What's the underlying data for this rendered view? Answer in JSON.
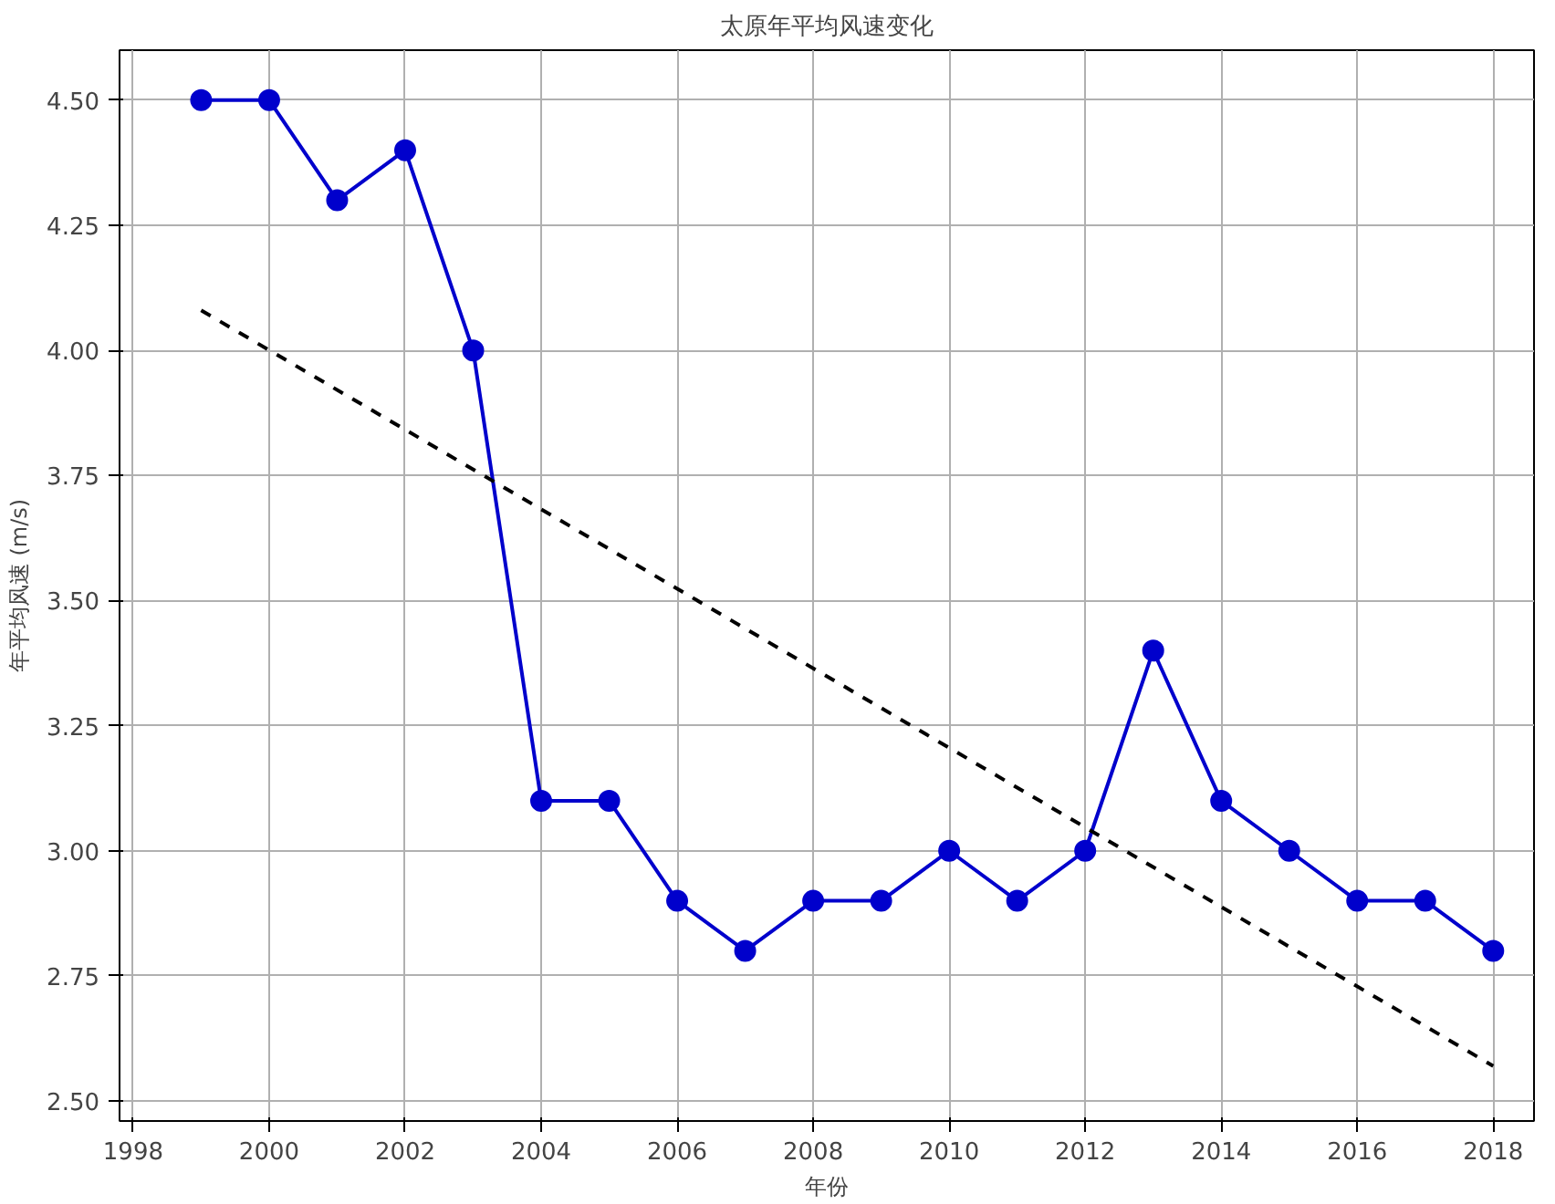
{
  "chart_data": {
    "type": "line",
    "title": "太原年平均风速变化",
    "xlabel": "年份",
    "ylabel": "年平均风速 (m/s)",
    "xlim": [
      1997.8,
      2018.6
    ],
    "ylim": [
      2.46,
      4.6
    ],
    "xticks": [
      1998,
      2000,
      2002,
      2004,
      2006,
      2008,
      2010,
      2012,
      2014,
      2016,
      2018
    ],
    "yticks": [
      {
        "value": 2.5,
        "label": "2.50"
      },
      {
        "value": 2.75,
        "label": "2.75"
      },
      {
        "value": 3.0,
        "label": "3.00"
      },
      {
        "value": 3.25,
        "label": "3.25"
      },
      {
        "value": 3.5,
        "label": "3.50"
      },
      {
        "value": 3.75,
        "label": "3.75"
      },
      {
        "value": 4.0,
        "label": "4.00"
      },
      {
        "value": 4.25,
        "label": "4.25"
      },
      {
        "value": 4.5,
        "label": "4.50"
      }
    ],
    "grid": true,
    "series": [
      {
        "color": "#0000cc",
        "marker": "circle",
        "line_style": "solid",
        "x": [
          1999,
          2000,
          2001,
          2002,
          2003,
          2004,
          2005,
          2006,
          2007,
          2008,
          2009,
          2010,
          2011,
          2012,
          2013,
          2014,
          2015,
          2016,
          2017,
          2018
        ],
        "values": [
          4.5,
          4.5,
          4.3,
          4.4,
          4.0,
          3.1,
          3.1,
          2.9,
          2.8,
          2.9,
          2.9,
          3.0,
          2.9,
          3.0,
          3.4,
          3.1,
          3.0,
          2.9,
          2.9,
          2.8
        ]
      },
      {
        "type": "line",
        "color": "#000000",
        "marker": "none",
        "line_style": "dashed",
        "x": [
          1999,
          2018
        ],
        "values": [
          4.08,
          2.57
        ]
      }
    ]
  }
}
